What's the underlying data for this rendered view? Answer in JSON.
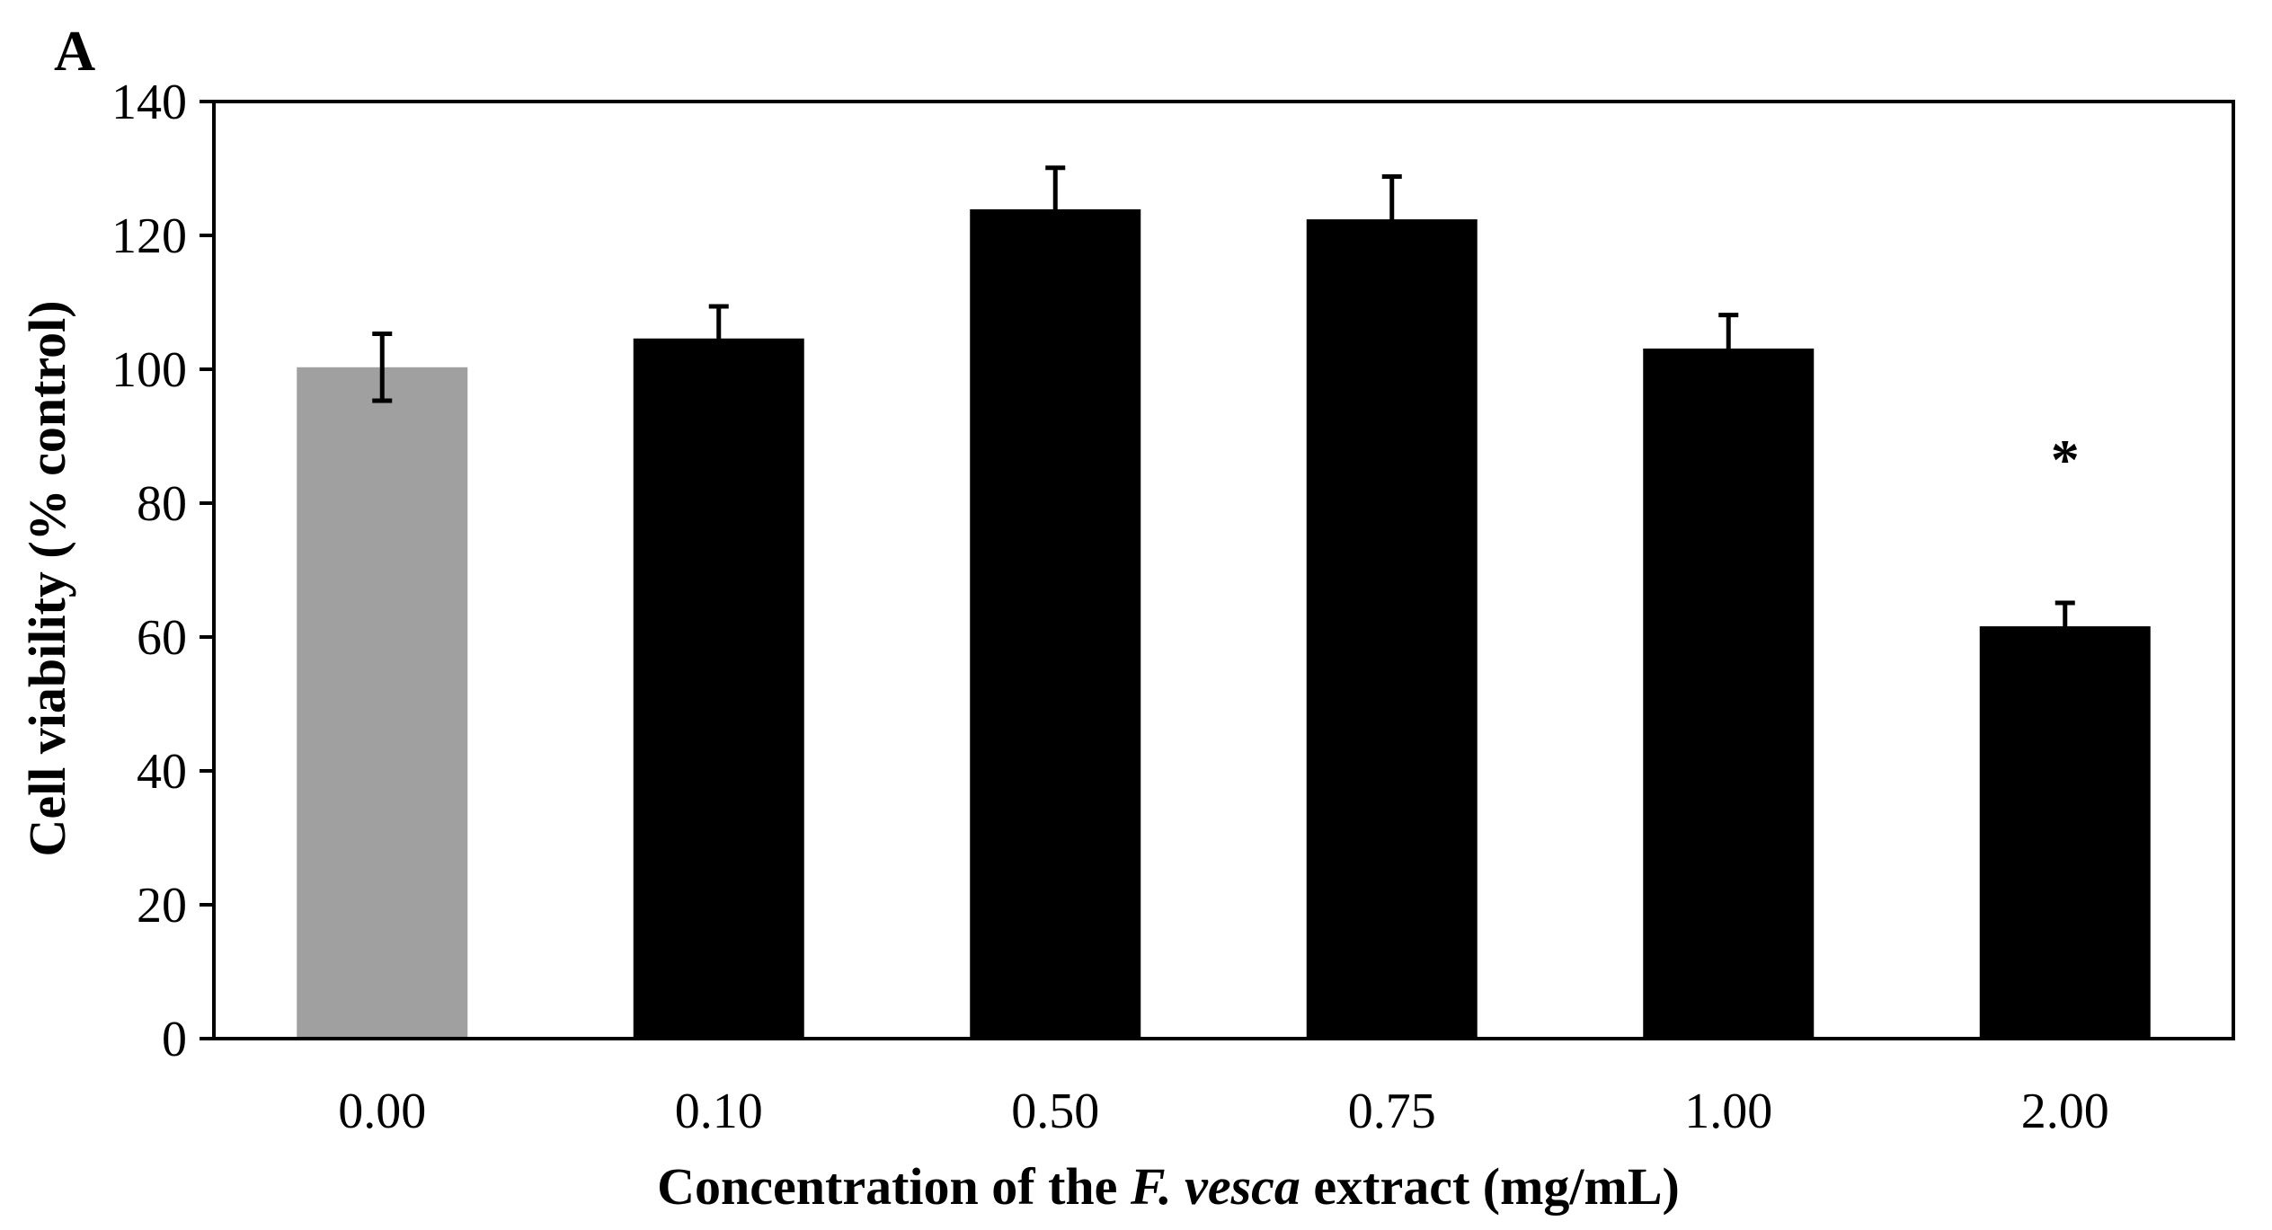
{
  "chart_data": {
    "type": "bar",
    "panel_label": "A",
    "categories": [
      "0.00",
      "0.10",
      "0.50",
      "0.75",
      "1.00",
      "2.00"
    ],
    "values": [
      100.3,
      104.6,
      123.9,
      122.4,
      103.1,
      61.6
    ],
    "errors": [
      5.0,
      4.8,
      6.2,
      6.4,
      5.0,
      3.5
    ],
    "bar_colors": [
      "#a0a0a0",
      "#000000",
      "#000000",
      "#000000",
      "#000000",
      "#000000"
    ],
    "annotations": [
      {
        "category": "2.00",
        "text": "*"
      }
    ],
    "ylabel": "Cell viability (% control)",
    "xlabel": {
      "prefix": "Concentration of the ",
      "italic": "F. vesca",
      "suffix": " extract (mg/mL)"
    },
    "ylim": [
      0,
      140
    ],
    "yticks": [
      0,
      20,
      40,
      60,
      80,
      100,
      120,
      140
    ],
    "grid": false
  }
}
